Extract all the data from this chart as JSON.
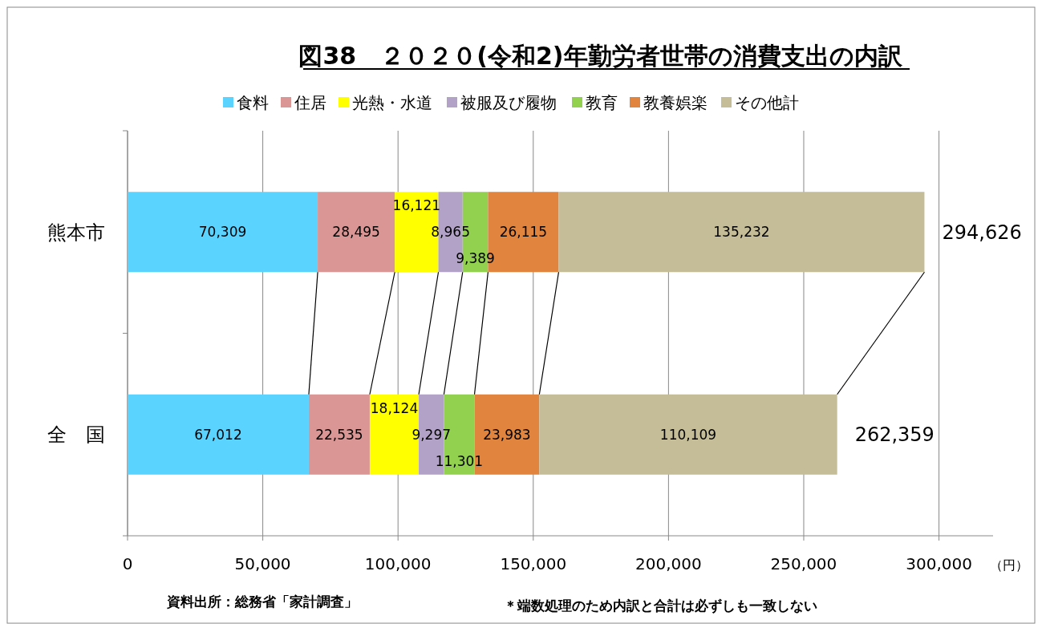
{
  "chart_data": {
    "type": "bar",
    "orientation": "horizontal",
    "stacked": true,
    "title": "図38　２０２０(令和2)年勤労者世帯の消費支出の内訳",
    "xlabel": "（円）",
    "categories": [
      "熊本市",
      "全　国"
    ],
    "series": [
      {
        "name": "食料",
        "color": "#5bd3ff",
        "values": [
          70309,
          67012
        ],
        "value_labels": [
          "70,309",
          "67,012"
        ]
      },
      {
        "name": "住居",
        "color": "#d99694",
        "values": [
          28495,
          22535
        ],
        "value_labels": [
          "28,495",
          "22,535"
        ]
      },
      {
        "name": "光熱・水道",
        "color": "#ffff00",
        "values": [
          16121,
          18124
        ],
        "value_labels": [
          "16,121",
          "18,124"
        ]
      },
      {
        "name": "被服及び履物",
        "color": "#b3a2c7",
        "values": [
          8965,
          9297
        ],
        "value_labels": [
          "8,965",
          "9,297"
        ]
      },
      {
        "name": "教育",
        "color": "#92d050",
        "values": [
          9389,
          11301
        ],
        "value_labels": [
          "9,389",
          "11,301"
        ]
      },
      {
        "name": "教養娯楽",
        "color": "#e0843e",
        "values": [
          26115,
          23983
        ],
        "value_labels": [
          "26,115",
          "23,983"
        ]
      },
      {
        "name": "その他計",
        "color": "#c4bd97",
        "values": [
          135232,
          110109
        ],
        "value_labels": [
          "135,232",
          "110,109"
        ]
      }
    ],
    "totals": [
      "294,626",
      "262,359"
    ],
    "xlim": [
      0,
      320000
    ],
    "xticks": [
      {
        "value": 0,
        "label": "0"
      },
      {
        "value": 50000,
        "label": "50,000"
      },
      {
        "value": 100000,
        "label": "100,000"
      },
      {
        "value": 150000,
        "label": "150,000"
      },
      {
        "value": 200000,
        "label": "200,000"
      },
      {
        "value": 250000,
        "label": "250,000"
      },
      {
        "value": 300000,
        "label": "300,000"
      }
    ],
    "grid": "x",
    "legend": "top",
    "annotations": [
      "資料出所：総務省「家計調査」",
      "＊端数処理のため内訳と合計は必ずしも一致しない"
    ]
  }
}
